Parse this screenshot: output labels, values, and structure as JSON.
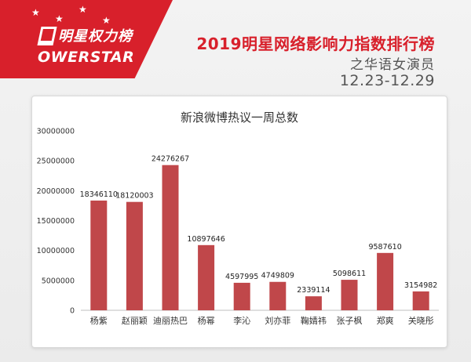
{
  "header": {
    "logo_cn": "明星权力榜",
    "logo_en": "OWERSTAR",
    "title": "2019明星网络影响力指数排行榜",
    "subtitle": "之华语女演员",
    "date_range": "12.23-12.29"
  },
  "colors": {
    "brand": "#d8202b",
    "bar": "#c0474a"
  },
  "icons": [
    "star-icon",
    "powerstar-logo-icon"
  ],
  "chart_data": {
    "type": "bar",
    "title": "新浪微博热议一周总数",
    "categories": [
      "杨紫",
      "赵丽颖",
      "迪丽热巴",
      "杨幂",
      "李沁",
      "刘亦菲",
      "鞠婧祎",
      "张子枫",
      "郑爽",
      "关晓彤"
    ],
    "values": [
      18346110,
      18120003,
      24276267,
      10897646,
      4597995,
      4749809,
      2339114,
      5098611,
      9587610,
      3154982
    ],
    "ylim": [
      0,
      30000000
    ],
    "yticks": [
      0,
      5000000,
      10000000,
      15000000,
      20000000,
      25000000,
      30000000
    ],
    "grid": false,
    "legend": "none"
  }
}
